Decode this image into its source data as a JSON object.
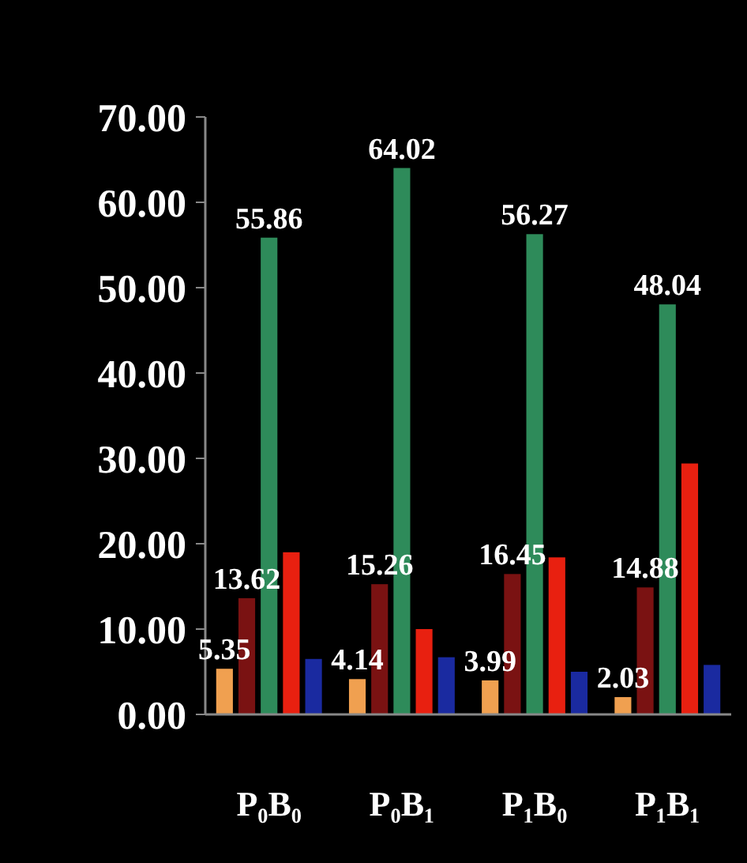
{
  "chart_data": {
    "type": "bar",
    "categories": [
      "P₀B₀",
      "P₀B₁",
      "P₁B₀",
      "P₁B₁"
    ],
    "series": [
      {
        "color": "#f0a050",
        "values": [
          5.35,
          4.14,
          3.99,
          2.03
        ],
        "value_labels": [
          "5.35",
          "4.14",
          "3.99",
          "2.03"
        ]
      },
      {
        "color": "#7a1212",
        "values": [
          13.62,
          15.26,
          16.45,
          14.88
        ],
        "value_labels": [
          "13.62",
          "15.26",
          "16.45",
          "14.88"
        ]
      },
      {
        "color": "#2e8b5a",
        "values": [
          55.86,
          64.02,
          56.27,
          48.04
        ],
        "value_labels": [
          "55.86",
          "64.02",
          "56.27",
          "48.04"
        ]
      },
      {
        "color": "#e82010",
        "values": [
          19,
          10,
          18.4,
          29.4
        ]
      },
      {
        "color": "#1a2aa0",
        "values": [
          6.5,
          6.7,
          5,
          5.8
        ]
      }
    ],
    "ylim": [
      0,
      70
    ],
    "yticks": [
      {
        "value": 0,
        "label": "0.00"
      },
      {
        "value": 10,
        "label": "10.00"
      },
      {
        "value": 20,
        "label": "20.00"
      },
      {
        "value": 30,
        "label": "30.00"
      },
      {
        "value": 40,
        "label": "40.00"
      },
      {
        "value": 50,
        "label": "50.00"
      },
      {
        "value": 60,
        "label": "60.00"
      },
      {
        "value": 70,
        "label": "70.00"
      }
    ],
    "grid": false
  }
}
